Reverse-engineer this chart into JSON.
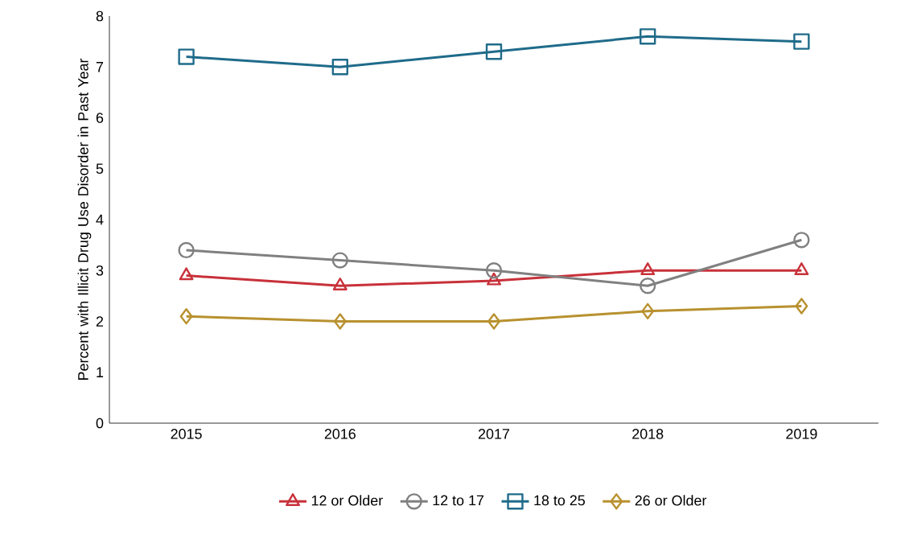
{
  "chart_data": {
    "type": "line",
    "ylabel": "Percent with Illicit Drug Use Disorder in Past Year",
    "categories": [
      "2015",
      "2016",
      "2017",
      "2018",
      "2019"
    ],
    "ylim": [
      0,
      8
    ],
    "yticks": [
      0,
      1,
      2,
      3,
      4,
      5,
      6,
      7,
      8
    ],
    "legend": "bottom",
    "grid": false,
    "line_style": "solid",
    "series": [
      {
        "name": "12 or Older",
        "color": "#c8313a",
        "marker": "triangle",
        "values": [
          2.9,
          2.7,
          2.8,
          3.0,
          3.0
        ]
      },
      {
        "name": "12 to 17",
        "color": "#808080",
        "marker": "circle",
        "values": [
          3.4,
          3.2,
          3.0,
          2.7,
          3.6
        ]
      },
      {
        "name": "18 to 25",
        "color": "#1f6b8a",
        "marker": "square",
        "values": [
          7.2,
          7.0,
          7.3,
          7.6,
          7.5
        ]
      },
      {
        "name": "26 or Older",
        "color": "#b8912f",
        "marker": "diamond",
        "values": [
          2.1,
          2.0,
          2.0,
          2.2,
          2.3
        ]
      }
    ]
  }
}
